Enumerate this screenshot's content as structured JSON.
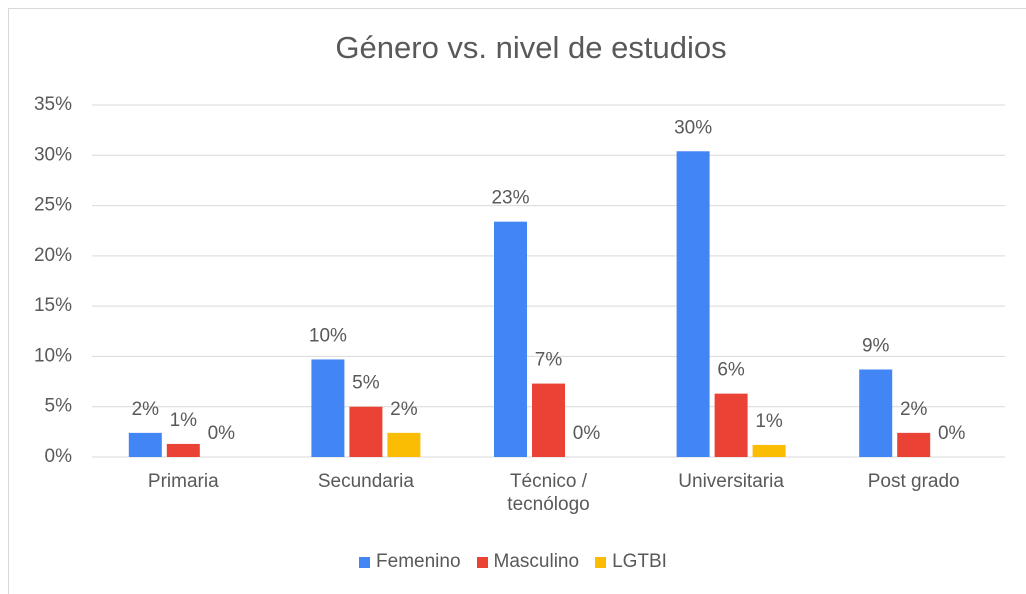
{
  "chart_data": {
    "type": "bar",
    "title": "Género vs. nivel de estudios",
    "categories": [
      "Primaria",
      "Secundaria",
      "Técnico / tecnólogo",
      "Universitaria",
      "Post grado"
    ],
    "series": [
      {
        "name": "Femenino",
        "color": "#4285f4",
        "values": [
          2.4,
          9.7,
          23.4,
          30.4,
          8.7
        ],
        "value_labels": [
          "2%",
          "10%",
          "23%",
          "30%",
          "9%"
        ]
      },
      {
        "name": "Masculino",
        "color": "#ea4335",
        "values": [
          1.3,
          5.0,
          7.3,
          6.3,
          2.4
        ],
        "value_labels": [
          "1%",
          "5%",
          "7%",
          "6%",
          "2%"
        ]
      },
      {
        "name": "LGTBI",
        "color": "#fbbc04",
        "values": [
          0,
          2.4,
          0,
          1.2,
          0
        ],
        "value_labels": [
          "0%",
          "2%",
          "0%",
          "1%",
          "0%"
        ]
      }
    ],
    "ylim": [
      0,
      35
    ],
    "yticks": [
      {
        "value": 0,
        "label": "0%"
      },
      {
        "value": 5,
        "label": "5%"
      },
      {
        "value": 10,
        "label": "10%"
      },
      {
        "value": 15,
        "label": "15%"
      },
      {
        "value": 20,
        "label": "20%"
      },
      {
        "value": 25,
        "label": "25%"
      },
      {
        "value": 30,
        "label": "30%"
      },
      {
        "value": 35,
        "label": "35%"
      }
    ],
    "grid": true,
    "legend": "bottom"
  }
}
